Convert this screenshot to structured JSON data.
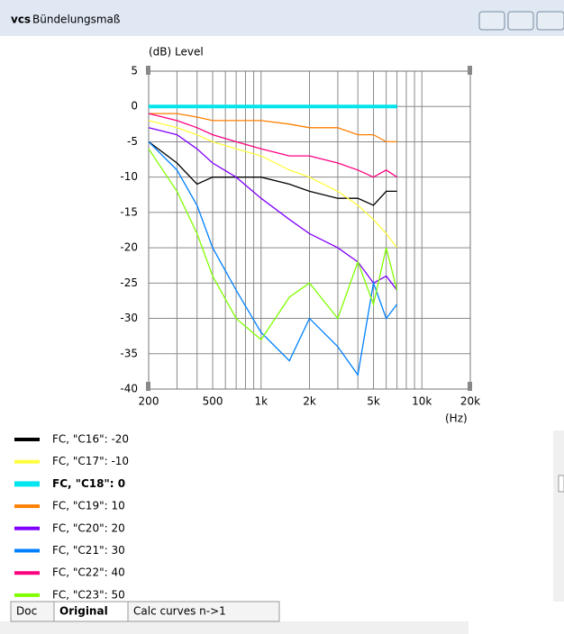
{
  "window": {
    "title": "Bündelungsmaß"
  },
  "tabs": [
    "Doc",
    "Original",
    "Calc curves n->1"
  ],
  "chart_data": {
    "type": "line",
    "ylabel": "(dB)  Level",
    "xlabel": "(Hz)",
    "log_x": true,
    "grid": true,
    "x": [
      200,
      300,
      400,
      500,
      700,
      1000,
      1500,
      2000,
      3000,
      4000,
      5000,
      6000,
      7000
    ],
    "series": [
      {
        "name": "FC, \"C16\": -20",
        "color": "#000000",
        "values": [
          -5,
          -8,
          -11,
          -10,
          -10,
          -10,
          -11,
          -12,
          -13,
          -13,
          -14,
          -12,
          -12
        ]
      },
      {
        "name": "FC, \"C17\": -10",
        "color": "#ffff40",
        "values": [
          -2,
          -3,
          -4,
          -5,
          -6,
          -7,
          -9,
          -10,
          -12,
          -14,
          -16,
          -18,
          -20
        ]
      },
      {
        "name": "FC, \"C18\": 0",
        "color": "#00e5ee",
        "values": [
          0,
          0,
          0,
          0,
          0,
          0,
          0,
          0,
          0,
          0,
          0,
          0,
          0
        ]
      },
      {
        "name": "FC, \"C19\": 10",
        "color": "#ff7f00",
        "values": [
          -1,
          -1,
          -1.5,
          -2,
          -2,
          -2,
          -2.5,
          -3,
          -3,
          -4,
          -4,
          -5,
          -5
        ]
      },
      {
        "name": "FC, \"C20\": 20",
        "color": "#8000ff",
        "values": [
          -3,
          -4,
          -6,
          -8,
          -10,
          -13,
          -16,
          -18,
          -20,
          -22,
          -25,
          -24,
          -26
        ]
      },
      {
        "name": "FC, \"C21\": 30",
        "color": "#0080ff",
        "values": [
          -5,
          -9,
          -14,
          -20,
          -26,
          -32,
          -36,
          -30,
          -34,
          -38,
          -25,
          -30,
          -28
        ]
      },
      {
        "name": "FC, \"C22\": 40",
        "color": "#ff0080",
        "values": [
          -1,
          -2,
          -3,
          -4,
          -5,
          -6,
          -7,
          -7,
          -8,
          -9,
          -10,
          -9,
          -10
        ]
      },
      {
        "name": "FC, \"C23\": 50",
        "color": "#80ff00",
        "values": [
          -6,
          -12,
          -18,
          -24,
          -30,
          -33,
          -27,
          -25,
          -30,
          -22,
          -28,
          -20,
          -26
        ]
      }
    ],
    "xlim": [
      200,
      20000
    ],
    "xticks": [
      200,
      500,
      {
        "value": 1000,
        "label": "1k"
      },
      {
        "value": 2000,
        "label": "2k"
      },
      {
        "value": 5000,
        "label": "5k"
      },
      {
        "value": 10000,
        "label": "10k"
      },
      {
        "value": 20000,
        "label": "20k"
      }
    ],
    "xminor_grid": [
      300,
      400,
      600,
      700,
      800,
      900,
      3000,
      4000,
      6000,
      7000,
      8000,
      9000
    ],
    "ylim": [
      -40,
      5
    ],
    "yticks": [
      5,
      0,
      -5,
      -10,
      -15,
      -20,
      -25,
      -30,
      -35,
      -40
    ]
  }
}
